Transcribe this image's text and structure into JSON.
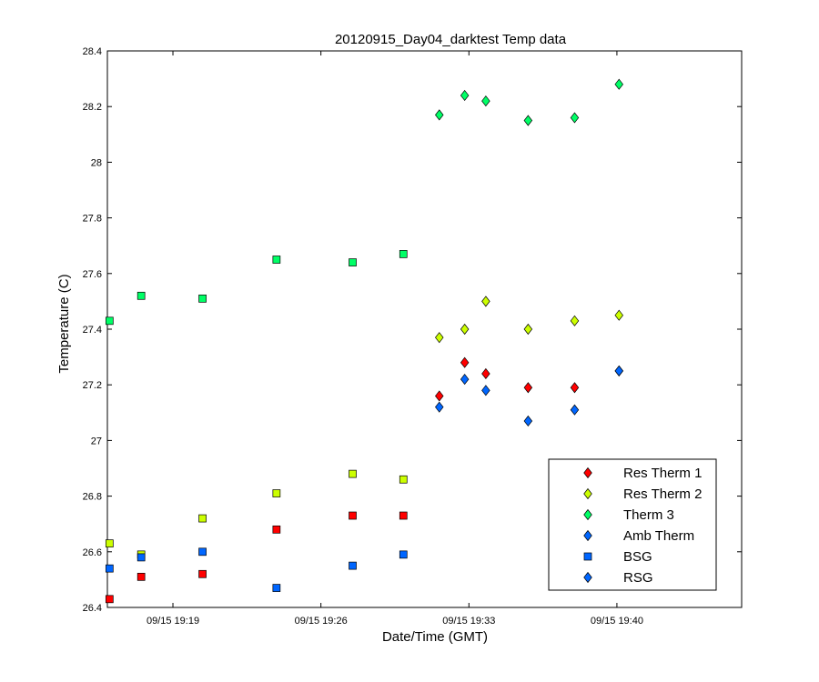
{
  "chart_data": {
    "type": "scatter",
    "title": "20120915_Day04_darktest Temp data",
    "xlabel": "Date/Time (GMT)",
    "ylabel": "Temperature (C)",
    "x_unit": "minutes after 09/15 19:00 (GMT)",
    "xlim": [
      15.9,
      45.9
    ],
    "ylim": [
      26.4,
      28.4
    ],
    "x_ticks": [
      {
        "value": 19,
        "label": "09/15 19:19"
      },
      {
        "value": 26,
        "label": "09/15 19:26"
      },
      {
        "value": 33,
        "label": "09/15 19:33"
      },
      {
        "value": 40,
        "label": "09/15 19:40"
      }
    ],
    "y_ticks": [
      {
        "value": 26.4,
        "label": "26.4"
      },
      {
        "value": 26.6,
        "label": "26.6"
      },
      {
        "value": 26.8,
        "label": "26.8"
      },
      {
        "value": 27.0,
        "label": "27"
      },
      {
        "value": 27.2,
        "label": "27.2"
      },
      {
        "value": 27.4,
        "label": "27.4"
      },
      {
        "value": 27.6,
        "label": "27.6"
      },
      {
        "value": 27.8,
        "label": "27.8"
      },
      {
        "value": 28.0,
        "label": "28"
      },
      {
        "value": 28.2,
        "label": "28.2"
      },
      {
        "value": 28.4,
        "label": "28.4"
      }
    ],
    "grid": false,
    "legend_position": "bottom-right",
    "series": [
      {
        "name": "Res Therm 1",
        "legend_marker": "diamond",
        "color": "#ff0000",
        "points": [
          {
            "x": 16.0,
            "y": 26.43,
            "marker": "square"
          },
          {
            "x": 17.5,
            "y": 26.51,
            "marker": "square"
          },
          {
            "x": 20.4,
            "y": 26.52,
            "marker": "square"
          },
          {
            "x": 23.9,
            "y": 26.68,
            "marker": "square"
          },
          {
            "x": 27.5,
            "y": 26.73,
            "marker": "square"
          },
          {
            "x": 29.9,
            "y": 26.73,
            "marker": "square"
          },
          {
            "x": 31.6,
            "y": 27.16,
            "marker": "diamond"
          },
          {
            "x": 32.8,
            "y": 27.28,
            "marker": "diamond"
          },
          {
            "x": 33.8,
            "y": 27.24,
            "marker": "diamond"
          },
          {
            "x": 35.8,
            "y": 27.19,
            "marker": "diamond"
          },
          {
            "x": 38.0,
            "y": 27.19,
            "marker": "diamond"
          },
          {
            "x": 40.1,
            "y": 27.25,
            "marker": "diamond"
          }
        ]
      },
      {
        "name": "Res Therm 2",
        "legend_marker": "diamond",
        "color": "#ccff00",
        "points": [
          {
            "x": 16.0,
            "y": 26.63,
            "marker": "square"
          },
          {
            "x": 17.5,
            "y": 26.59,
            "marker": "square"
          },
          {
            "x": 20.4,
            "y": 26.72,
            "marker": "square"
          },
          {
            "x": 23.9,
            "y": 26.81,
            "marker": "square"
          },
          {
            "x": 27.5,
            "y": 26.88,
            "marker": "square"
          },
          {
            "x": 29.9,
            "y": 26.86,
            "marker": "square"
          },
          {
            "x": 31.6,
            "y": 27.37,
            "marker": "diamond"
          },
          {
            "x": 32.8,
            "y": 27.4,
            "marker": "diamond"
          },
          {
            "x": 33.8,
            "y": 27.5,
            "marker": "diamond"
          },
          {
            "x": 35.8,
            "y": 27.4,
            "marker": "diamond"
          },
          {
            "x": 38.0,
            "y": 27.43,
            "marker": "diamond"
          },
          {
            "x": 40.1,
            "y": 27.45,
            "marker": "diamond"
          }
        ]
      },
      {
        "name": "Therm 3",
        "legend_marker": "diamond",
        "color": "#00ff66",
        "points": [
          {
            "x": 16.0,
            "y": 27.43,
            "marker": "square"
          },
          {
            "x": 17.5,
            "y": 27.52,
            "marker": "square"
          },
          {
            "x": 20.4,
            "y": 27.51,
            "marker": "square"
          },
          {
            "x": 23.9,
            "y": 27.65,
            "marker": "square"
          },
          {
            "x": 27.5,
            "y": 27.64,
            "marker": "square"
          },
          {
            "x": 29.9,
            "y": 27.67,
            "marker": "square"
          },
          {
            "x": 31.6,
            "y": 28.17,
            "marker": "diamond"
          },
          {
            "x": 32.8,
            "y": 28.24,
            "marker": "diamond"
          },
          {
            "x": 33.8,
            "y": 28.22,
            "marker": "diamond"
          },
          {
            "x": 35.8,
            "y": 28.15,
            "marker": "diamond"
          },
          {
            "x": 38.0,
            "y": 28.16,
            "marker": "diamond"
          },
          {
            "x": 40.1,
            "y": 28.28,
            "marker": "diamond"
          }
        ]
      },
      {
        "name": "Amb Therm",
        "legend_marker": "diamond",
        "color": "#0066ff",
        "points": [
          {
            "x": 16.0,
            "y": 26.54,
            "marker": "square"
          },
          {
            "x": 17.5,
            "y": 26.58,
            "marker": "square"
          },
          {
            "x": 20.4,
            "y": 26.6,
            "marker": "square"
          },
          {
            "x": 23.9,
            "y": 26.47,
            "marker": "square"
          },
          {
            "x": 27.5,
            "y": 26.55,
            "marker": "square"
          },
          {
            "x": 29.9,
            "y": 26.59,
            "marker": "square"
          },
          {
            "x": 31.6,
            "y": 27.12,
            "marker": "diamond"
          },
          {
            "x": 32.8,
            "y": 27.22,
            "marker": "diamond"
          },
          {
            "x": 33.8,
            "y": 27.18,
            "marker": "diamond"
          },
          {
            "x": 35.8,
            "y": 27.07,
            "marker": "diamond"
          },
          {
            "x": 38.0,
            "y": 27.11,
            "marker": "diamond"
          },
          {
            "x": 40.1,
            "y": 27.25,
            "marker": "diamond"
          }
        ]
      },
      {
        "name": "BSG",
        "legend_marker": "square",
        "color": "#0066ff",
        "points": []
      },
      {
        "name": "RSG",
        "legend_marker": "diamond",
        "color": "#0066ff",
        "points": []
      }
    ]
  }
}
